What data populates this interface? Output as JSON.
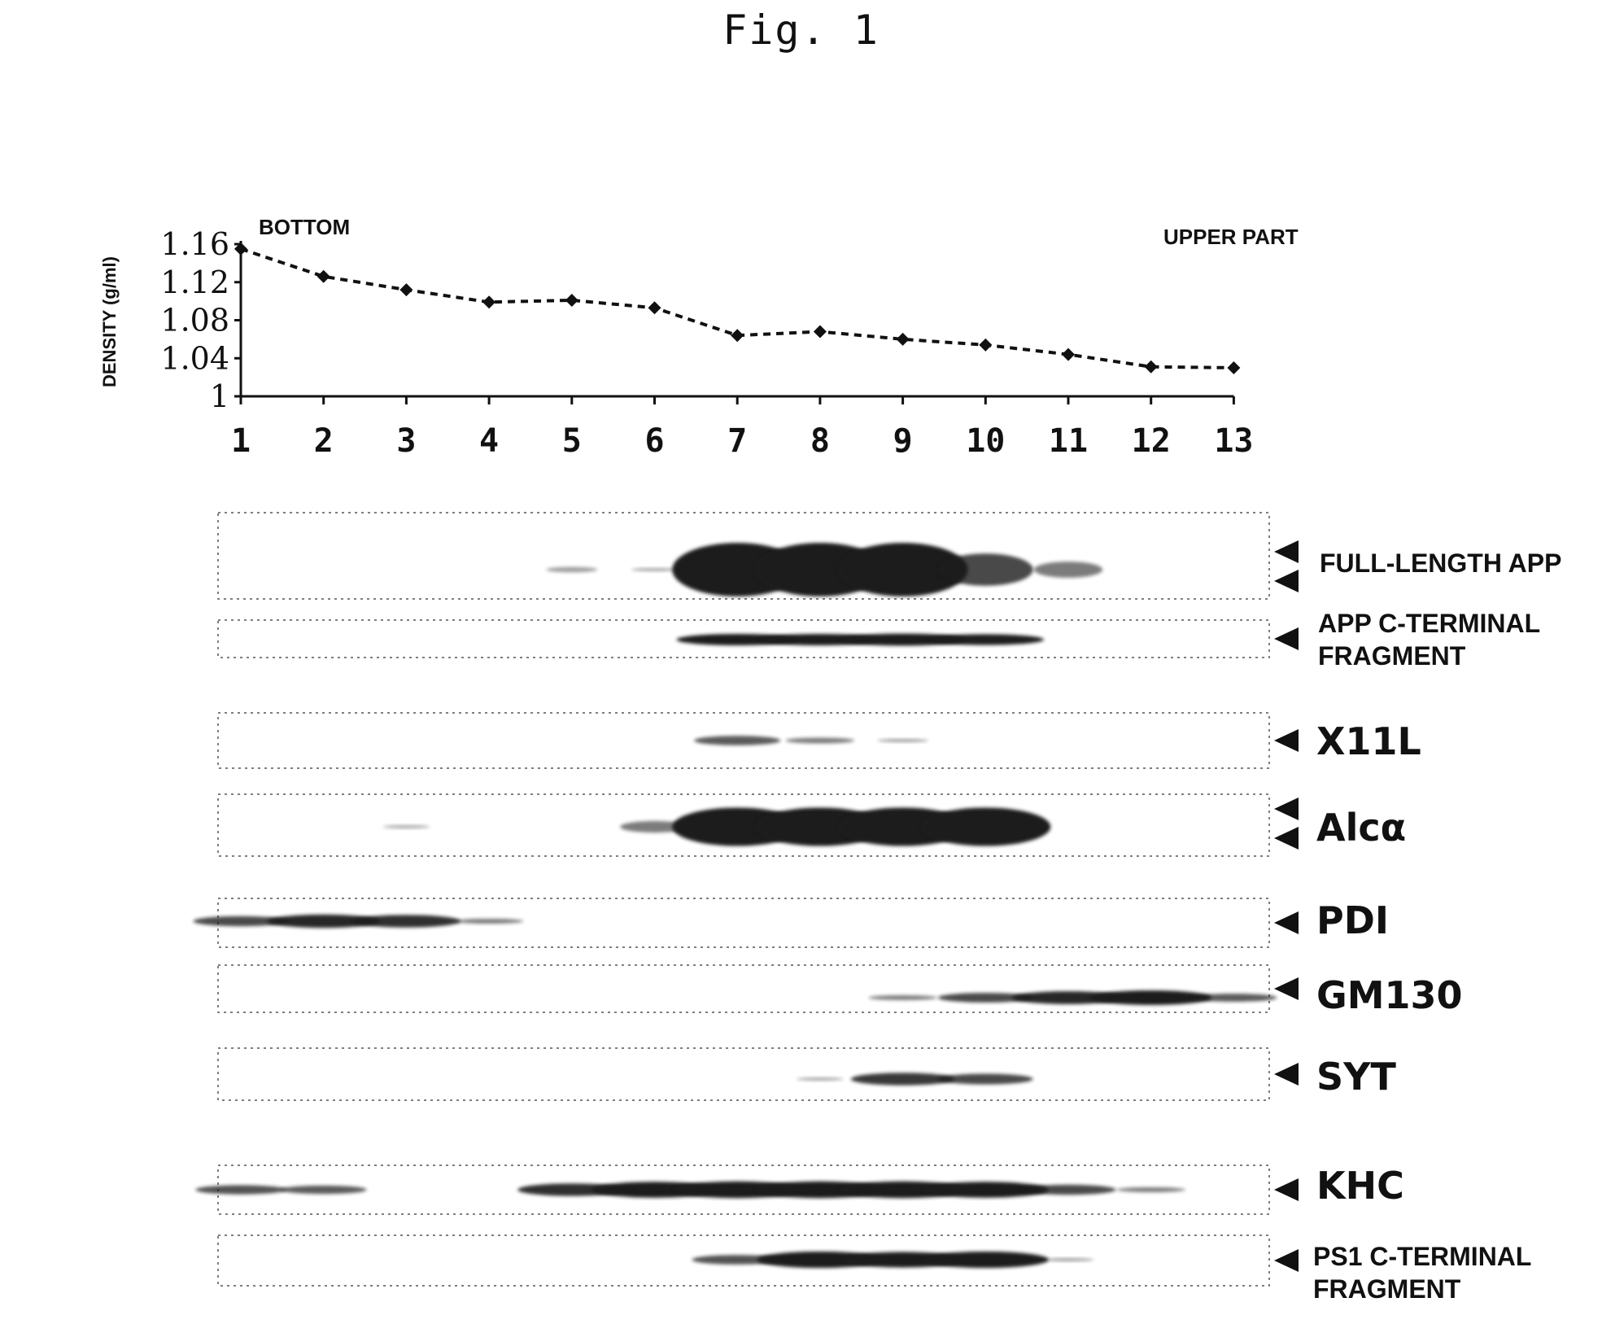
{
  "figure_title": "Fig. 1",
  "chart_data": {
    "type": "line",
    "title": "",
    "xlabel": "",
    "ylabel": "DENSITY (g/ml)",
    "annotations": [
      "BOTTOM",
      "UPPER PART"
    ],
    "x": [
      1,
      2,
      3,
      4,
      5,
      6,
      7,
      8,
      9,
      10,
      11,
      12,
      13
    ],
    "x_tick_labels": [
      "1",
      "2",
      "3",
      "4",
      "5",
      "6",
      "7",
      "8",
      "9",
      "10",
      "11",
      "12",
      "13"
    ],
    "y_tick_labels": [
      "1",
      "1.04",
      "1.08",
      "1.12",
      "1.16"
    ],
    "ylim": [
      1,
      1.16
    ],
    "line_style": "dashed",
    "marker": "diamond",
    "series": [
      {
        "values": [
          1.155,
          1.126,
          1.112,
          1.099,
          1.101,
          1.093,
          1.064,
          1.068,
          1.06,
          1.054,
          1.044,
          1.031,
          1.03
        ]
      }
    ],
    "grid": false
  },
  "blots": [
    {
      "name": "full-length-app",
      "label_lines": [
        "FULL-LENGTH APP"
      ],
      "arrows": 2,
      "big": false,
      "bands": [
        0,
        0,
        0,
        0,
        0.1,
        0.05,
        1.0,
        1.0,
        1.0,
        0.6,
        0.3,
        0,
        0
      ]
    },
    {
      "name": "app-c-terminal-fragment",
      "label_lines": [
        "APP C-TERMINAL",
        "FRAGMENT"
      ],
      "arrows": 1,
      "big": false,
      "bands": [
        0,
        0,
        0,
        0,
        0,
        0,
        0.9,
        0.9,
        0.95,
        0.85,
        0,
        0,
        0
      ]
    },
    {
      "name": "x11l",
      "label_lines": [
        "X11L"
      ],
      "arrows": 1,
      "big": true,
      "bands": [
        0,
        0,
        0,
        0,
        0,
        0,
        0.5,
        0.3,
        0.1,
        0,
        0,
        0,
        0
      ]
    },
    {
      "name": "alc-alpha",
      "label_lines": [
        "Alcα"
      ],
      "arrows": 2,
      "big": true,
      "bands": [
        0,
        0,
        0.05,
        0,
        0,
        0.3,
        1.0,
        1.0,
        1.0,
        1.0,
        0,
        0,
        0
      ]
    },
    {
      "name": "pdi",
      "label_lines": [
        "PDI"
      ],
      "arrows": 1,
      "big": true,
      "bands": [
        0.6,
        0.8,
        0.75,
        0.3,
        0,
        0,
        0,
        0,
        0,
        0,
        0,
        0,
        0
      ]
    },
    {
      "name": "gm130",
      "label_lines": [
        "GM130"
      ],
      "arrows": 1,
      "big": true,
      "bands": [
        0,
        0,
        0,
        0,
        0,
        0,
        0,
        0,
        0.3,
        0.6,
        0.8,
        0.9,
        0.5
      ]
    },
    {
      "name": "syt",
      "label_lines": [
        "SYT"
      ],
      "arrows": 1,
      "big": true,
      "bands": [
        0,
        0,
        0,
        0,
        0,
        0,
        0,
        0.05,
        0.7,
        0.6,
        0,
        0,
        0
      ]
    },
    {
      "name": "khc",
      "label_lines": [
        "KHC"
      ],
      "arrows": 1,
      "big": true,
      "bands": [
        0.55,
        0.5,
        0,
        0,
        0.75,
        0.95,
        1.0,
        1.0,
        1.0,
        0.95,
        0.6,
        0.3,
        0
      ]
    },
    {
      "name": "ps1-c-terminal-fragment",
      "label_lines": [
        "PS1 C-TERMINAL",
        "FRAGMENT"
      ],
      "arrows": 1,
      "big": false,
      "bands": [
        0,
        0,
        0,
        0,
        0,
        0,
        0.55,
        0.95,
        0.9,
        0.95,
        0.1,
        0,
        0
      ]
    }
  ],
  "colors": {
    "ink": "#111111",
    "band": "#1a1a1a",
    "panel_border": "#555555"
  }
}
